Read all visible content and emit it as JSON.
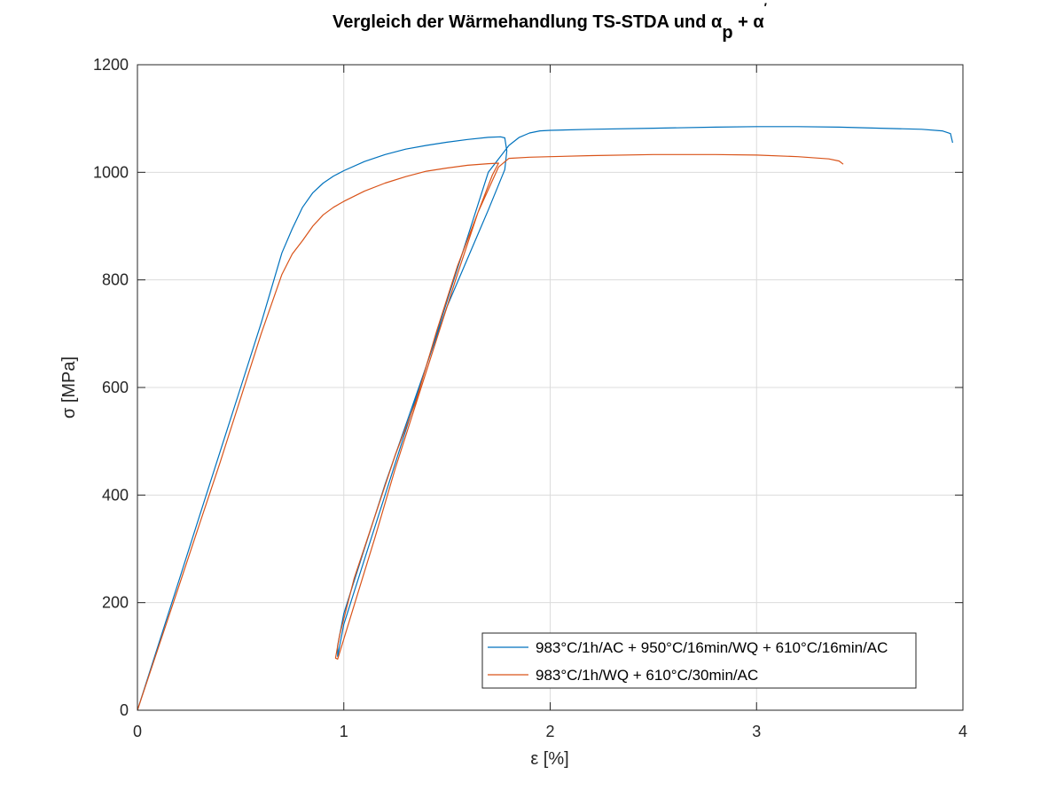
{
  "chart_data": {
    "type": "line",
    "title_parts": {
      "main": "Vergleich der Wärmehandlung TS-STDA und α",
      "sub": "p",
      "plus": " + α",
      "sup": "′"
    },
    "xlabel": "ε [%]",
    "ylabel": "σ [MPa]",
    "xlim": [
      0,
      4
    ],
    "ylim": [
      0,
      1200
    ],
    "xticks": [
      0,
      1,
      2,
      3,
      4
    ],
    "yticks": [
      0,
      200,
      400,
      600,
      800,
      1000,
      1200
    ],
    "grid": true,
    "legend_position": "bottom-right",
    "series": [
      {
        "name": "983°C/1h/AC + 950°C/16min/WQ + 610°C/16min/AC",
        "color": "#0072BD",
        "x": [
          0,
          0.1,
          0.2,
          0.3,
          0.4,
          0.5,
          0.6,
          0.7,
          0.75,
          0.8,
          0.85,
          0.9,
          0.95,
          1.0,
          1.1,
          1.2,
          1.3,
          1.4,
          1.5,
          1.6,
          1.7,
          1.76,
          1.78,
          1.79,
          1.78,
          1.7,
          1.6,
          1.5,
          1.4,
          1.3,
          1.2,
          1.1,
          1.0,
          0.97,
          0.97,
          1.0,
          1.1,
          1.2,
          1.3,
          1.4,
          1.5,
          1.6,
          1.7,
          1.75,
          1.8,
          1.85,
          1.9,
          1.95,
          2.0,
          2.2,
          2.5,
          2.8,
          3.0,
          3.2,
          3.4,
          3.6,
          3.8,
          3.9,
          3.94,
          3.95
        ],
        "y": [
          0,
          120,
          240,
          360,
          480,
          600,
          720,
          850,
          895,
          935,
          962,
          980,
          993,
          1003,
          1020,
          1033,
          1043,
          1050,
          1056,
          1061,
          1065,
          1066,
          1064,
          1040,
          1005,
          930,
          840,
          750,
          640,
          530,
          420,
          300,
          180,
          120,
          100,
          160,
          280,
          400,
          520,
          640,
          760,
          880,
          1000,
          1025,
          1050,
          1065,
          1073,
          1077,
          1078,
          1080,
          1082,
          1084,
          1085,
          1085,
          1084,
          1082,
          1080,
          1077,
          1072,
          1055
        ]
      },
      {
        "name": "983°C/1h/WQ + 610°C/30min/AC",
        "color": "#D95319",
        "x": [
          0,
          0.1,
          0.2,
          0.3,
          0.4,
          0.5,
          0.6,
          0.7,
          0.75,
          0.8,
          0.85,
          0.9,
          0.95,
          1.0,
          1.1,
          1.2,
          1.3,
          1.4,
          1.5,
          1.6,
          1.7,
          1.75,
          1.72,
          1.65,
          1.55,
          1.45,
          1.35,
          1.25,
          1.15,
          1.05,
          0.98,
          0.96,
          0.97,
          1.05,
          1.15,
          1.25,
          1.35,
          1.45,
          1.55,
          1.65,
          1.75,
          1.8,
          1.9,
          2.0,
          2.2,
          2.5,
          2.8,
          3.0,
          3.2,
          3.35,
          3.4,
          3.42
        ],
        "y": [
          0,
          115,
          230,
          345,
          460,
          580,
          700,
          810,
          848,
          873,
          900,
          921,
          935,
          946,
          965,
          980,
          992,
          1002,
          1008,
          1013,
          1016,
          1017,
          995,
          925,
          825,
          705,
          575,
          475,
          360,
          245,
          140,
          97,
          95,
          195,
          320,
          450,
          570,
          690,
          810,
          925,
          1010,
          1026,
          1028,
          1029,
          1031,
          1033,
          1033,
          1032,
          1029,
          1025,
          1021,
          1015
        ]
      }
    ]
  }
}
